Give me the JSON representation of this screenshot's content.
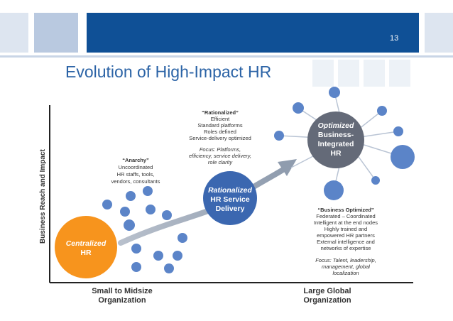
{
  "slide": {
    "number": "13",
    "title": "Evolution of High-Impact HR"
  },
  "colors": {
    "header_dark": "#0f5096",
    "header_light": "#b9c9e0",
    "title": "#2b63a6",
    "orange": "#f7941d",
    "mid_blue": "#3b67b0",
    "gray": "#646a78",
    "dot": "#5b84c8",
    "arrow": "#9aa6b5"
  },
  "diagram": {
    "y_axis_label": "Business Reach and Impact",
    "x_left_label_1": "Small to Midsize",
    "x_left_label_2": "Organization",
    "x_right_label_1": "Large Global",
    "x_right_label_2": "Organization",
    "centralized": {
      "line1": "Centralized",
      "line2": "HR"
    },
    "rationalized": {
      "line1": "Rationalized",
      "line2": "HR Service",
      "line3": "Delivery"
    },
    "optimized": {
      "line1": "Optimized",
      "line2": "Business-",
      "line3": "Integrated",
      "line4": "HR"
    },
    "anarchy": {
      "title": "“Anarchy”",
      "lines": [
        "Uncoordinated",
        "HR staffs, tools,",
        "vendors, consultants"
      ]
    },
    "rationalized_note": {
      "title": "“Rationalized”",
      "lines": [
        "Efficient",
        "Standard platforms",
        "Roles defined",
        "Service-delivery optimized"
      ],
      "focus": [
        "Focus: Platforms,",
        "efficiency, service delivery,",
        "role clarity"
      ]
    },
    "optimized_note": {
      "title": "“Business Optimized”",
      "lines": [
        "Federated – Coordinated",
        "Intelligent at the end nodes",
        "Highly trained and",
        "empowered HR partners",
        "External intelligence and",
        "networks of expertise"
      ],
      "focus": [
        "Focus: Talent, leadership,",
        "management, global",
        "localization"
      ]
    }
  }
}
